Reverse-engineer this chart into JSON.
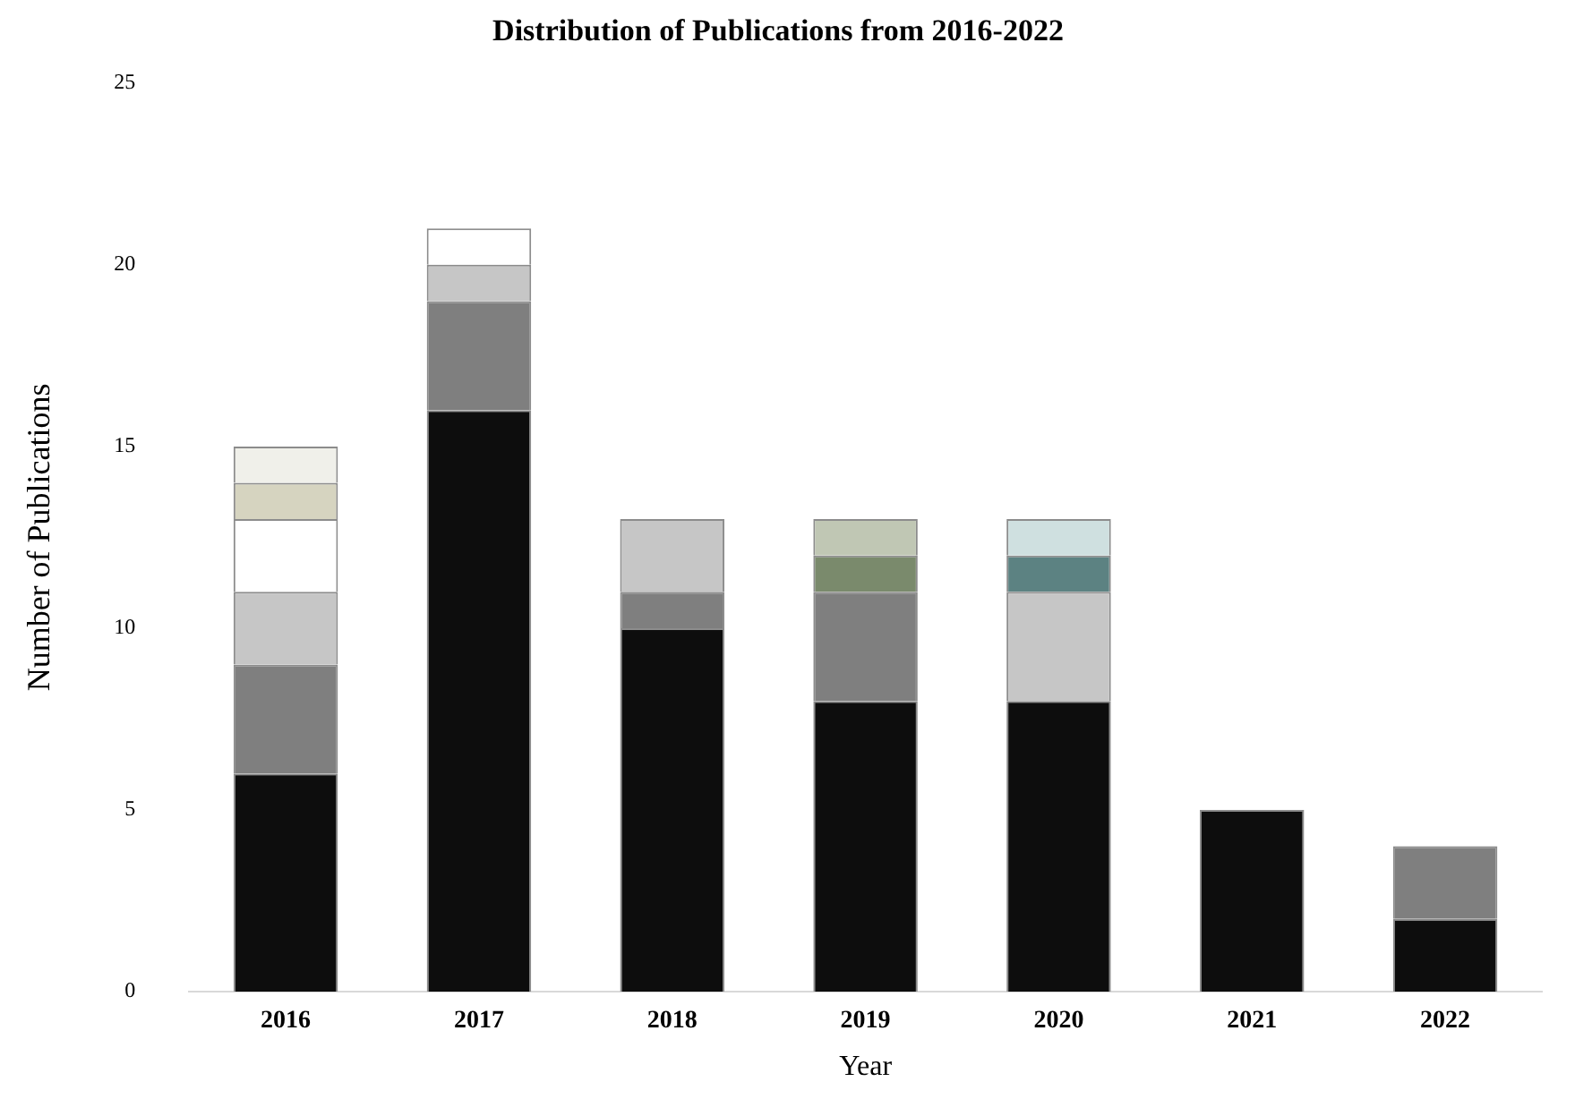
{
  "chart_data": {
    "type": "bar",
    "title": "Distribution of Publications from 2016-2022",
    "xlabel": "Year",
    "ylabel": "Number of Publications",
    "categories": [
      "2016",
      "2017",
      "2018",
      "2019",
      "2020",
      "2021",
      "2022"
    ],
    "stacked": true,
    "grid": false,
    "legend": false,
    "ylim": [
      0,
      25
    ],
    "yticks": [
      0,
      5,
      10,
      15,
      20,
      25
    ],
    "series": [
      {
        "color": "#0d0d0d",
        "values": [
          6,
          16,
          10,
          8,
          8,
          5,
          2
        ]
      },
      {
        "color": "#7f7f7f",
        "values": [
          3,
          3,
          1,
          3,
          null,
          null,
          2
        ]
      },
      {
        "color": "#c6c6c6",
        "values": [
          2,
          1,
          2,
          null,
          3,
          null,
          null
        ]
      },
      {
        "color": "#ffffff",
        "values": [
          2,
          1,
          null,
          null,
          null,
          null,
          null
        ]
      },
      {
        "color": "#d6d4c0",
        "values": [
          1,
          null,
          null,
          null,
          null,
          null,
          null
        ]
      },
      {
        "color": "#f0f0ea",
        "values": [
          1,
          null,
          null,
          null,
          null,
          null,
          null
        ]
      },
      {
        "color": "#7a8a6c",
        "values": [
          null,
          null,
          null,
          1,
          null,
          null,
          null
        ]
      },
      {
        "color": "#c0c7b4",
        "values": [
          null,
          null,
          null,
          1,
          null,
          null,
          null
        ]
      },
      {
        "color": "#5c8282",
        "values": [
          null,
          null,
          null,
          null,
          1,
          null,
          null
        ]
      },
      {
        "color": "#cfe0e0",
        "values": [
          null,
          null,
          null,
          null,
          1,
          null,
          null
        ]
      }
    ]
  }
}
